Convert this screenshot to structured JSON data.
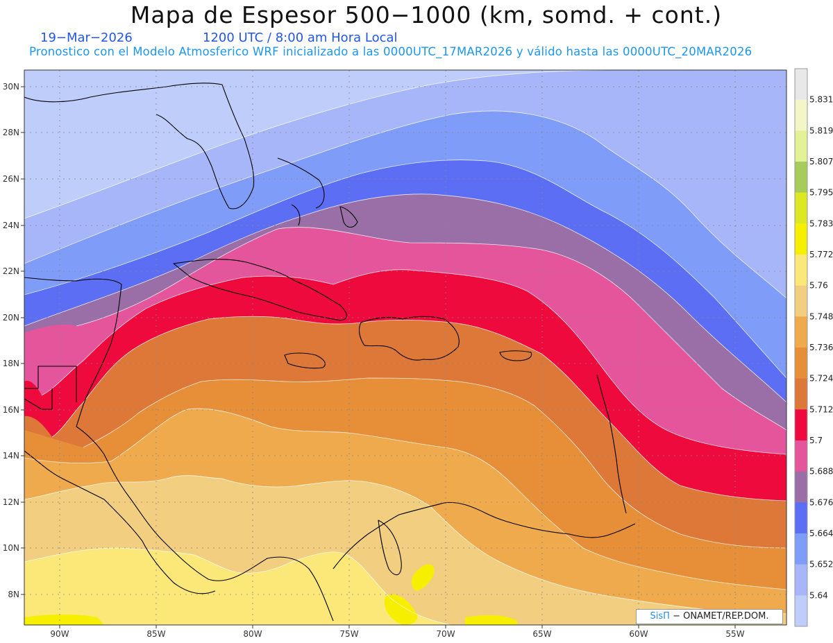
{
  "header": {
    "title": "Mapa de Espesor 500−1000 (km, somd. + cont.)",
    "date": "19−Mar−2026",
    "time": "1200 UTC / 8:00 am Hora Local",
    "subtitle": "Pronostico con el Modelo Atmosferico WRF inicializado a las 0000UTC_17MAR2026 y válido hasta las  0000UTC_20MAR2026"
  },
  "axes": {
    "lon_labels": [
      "90W",
      "85W",
      "80W",
      "75W",
      "70W",
      "65W",
      "60W",
      "55W"
    ],
    "lat_labels": [
      "30N",
      "28N",
      "26N",
      "24N",
      "22N",
      "20N",
      "18N",
      "16N",
      "14N",
      "12N",
      "10N",
      "8N"
    ]
  },
  "colorbar": {
    "levels": [
      "5.831",
      "5.819",
      "5.807",
      "5.795",
      "5.783",
      "5.772",
      "5.76",
      "5.748",
      "5.736",
      "5.724",
      "5.712",
      "5.7",
      "5.688",
      "5.676",
      "5.664",
      "5.652",
      "5.64"
    ],
    "colors_top_to_bottom": [
      "#e8e8e8",
      "#f3f6c8",
      "#e3f296",
      "#a8cc5a",
      "#dde823",
      "#f6ef00",
      "#fbe878",
      "#f2cf80",
      "#eeaa4c",
      "#e68e38",
      "#dd7838",
      "#ee0a3c",
      "#e4559b",
      "#9a6ea6",
      "#5b6ef4",
      "#7f9cf9",
      "#a6b6f8",
      "#bfcdfb"
    ]
  },
  "credit": {
    "brand": "SisΠ",
    "text": " −  ONAMET/REP.DOM."
  }
}
